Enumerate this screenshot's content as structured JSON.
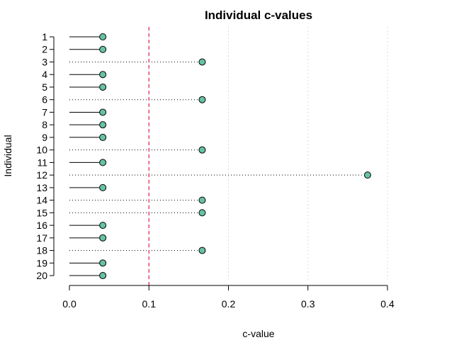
{
  "chart_data": {
    "type": "lollipop",
    "orientation": "horizontal",
    "title": "Individual c-values",
    "xlabel": "c-value",
    "ylabel": "Individual",
    "xlim": [
      0.0,
      0.4
    ],
    "x_ticks": [
      "0.0",
      "0.1",
      "0.2",
      "0.3",
      "0.4"
    ],
    "threshold": 0.1,
    "threshold_color": "#e0204a",
    "point_color": "#66c2a5",
    "grid": "vertical dotted",
    "categories": [
      "1",
      "2",
      "3",
      "4",
      "5",
      "6",
      "7",
      "8",
      "9",
      "10",
      "11",
      "12",
      "13",
      "14",
      "15",
      "16",
      "17",
      "18",
      "19",
      "20"
    ],
    "values": [
      0.042,
      0.042,
      0.167,
      0.042,
      0.042,
      0.167,
      0.042,
      0.042,
      0.042,
      0.167,
      0.042,
      0.375,
      0.042,
      0.167,
      0.167,
      0.042,
      0.042,
      0.167,
      0.042,
      0.042
    ]
  }
}
